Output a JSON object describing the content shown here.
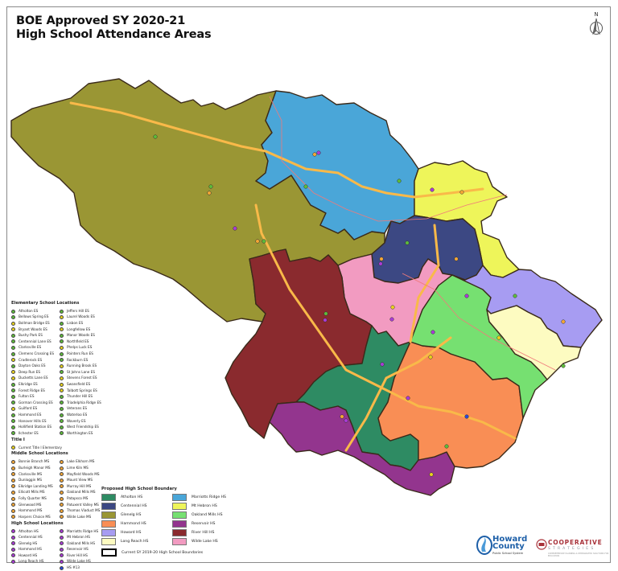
{
  "header": {
    "title_line1": "BOE Approved SY 2020-21",
    "title_line2": "High School Attendance Areas"
  },
  "compass": {
    "label": "N"
  },
  "colors": {
    "atholton": "#2e8b63",
    "centennial": "#3c4883",
    "glenelg": "#9a9634",
    "hammond": "#f98e55",
    "howard": "#a79cf2",
    "long_reach": "#fdfbc1",
    "marriotts_ridge": "#4aa6d8",
    "mt_hebron": "#eef55a",
    "oakland_mills": "#76e071",
    "reservoir": "#93358e",
    "river_hill": "#8a2a2e",
    "wilde_lake": "#f29bc1",
    "highway": "#f9b949",
    "es_marker": "#5dbb3a",
    "title1_marker": "#e8d21c",
    "ms_marker": "#f3a635",
    "hs_marker": "#a93ad6",
    "hs15_marker": "#2a49d8"
  },
  "elementary_legend": {
    "title": "Elementary School Locations",
    "col1": [
      "Atholton ES",
      "Bellows Spring ES",
      "Bollman Bridge ES",
      "Bryant Woods ES",
      "Bushy Park ES",
      "Centennial Lane ES",
      "Clarksville ES",
      "Clemens Crossing ES",
      "Cradlerock ES",
      "Dayton Oaks ES",
      "Deep Run ES",
      "Ducketts Lane ES",
      "Elkridge ES",
      "Forest Ridge ES",
      "Fulton ES",
      "Gorman Crossing ES",
      "Guilford ES",
      "Hammond ES",
      "Hanover Hills ES",
      "Hollifield Station ES",
      "Ilchester ES"
    ],
    "col1_title1": [
      false,
      false,
      true,
      true,
      false,
      false,
      false,
      false,
      true,
      false,
      true,
      true,
      false,
      false,
      false,
      false,
      true,
      false,
      false,
      false,
      false
    ],
    "col2": [
      "Jeffers Hill ES",
      "Laurel Woods ES",
      "Lisbon ES",
      "Longfellow ES",
      "Manor Woods ES",
      "Northfield ES",
      "Phelps Luck ES",
      "Pointers Run ES",
      "Rockburn ES",
      "Running Brook ES",
      "St Johns Lane ES",
      "Stevens Forest ES",
      "Swansfield ES",
      "Talbott Springs ES",
      "Thunder Hill ES",
      "Triadelphia Ridge ES",
      "Veterans ES",
      "Waterloo ES",
      "Waverly ES",
      "West Friendship ES",
      "Worthington ES"
    ],
    "col2_title1": [
      false,
      true,
      false,
      true,
      false,
      false,
      true,
      false,
      false,
      true,
      false,
      true,
      true,
      true,
      false,
      false,
      false,
      false,
      false,
      false,
      false
    ]
  },
  "title1_legend": {
    "title": "Title I",
    "item": "Current Title I Elementary"
  },
  "middle_legend": {
    "title": "Middle School Locations",
    "col1": [
      "Bonnie Branch MS",
      "Burleigh Manor MS",
      "Clarksville MS",
      "Dunloggin MS",
      "Elkridge Landing MS",
      "Ellicott Mills MS",
      "Folly Quarter MS",
      "Glenwood MS",
      "Hammond MS",
      "Harpers Choice MS"
    ],
    "col2": [
      "Lake Elkhorn MS",
      "Lime Kiln MS",
      "Mayfield Woods MS",
      "Mount View MS",
      "Murray Hill MS",
      "Oakland Mills MS",
      "Patapsco MS",
      "Patuxent Valley MS",
      "Thomas Viaduct MS",
      "Wilde Lake MS"
    ]
  },
  "high_legend": {
    "title": "High School Locations",
    "col1": [
      "Atholton HS",
      "Centennial HS",
      "Glenelg HS",
      "Hammond HS",
      "Howard HS",
      "Long Reach HS"
    ],
    "col2": [
      "Marriotts Ridge HS",
      "Mt Hebron HS",
      "Oakland Mills HS",
      "Reservoir HS",
      "River Hill HS",
      "Wilde Lake HS",
      "HS #13"
    ]
  },
  "boundary_legend": {
    "title": "Proposed High School Boundary",
    "items": [
      {
        "label": "Atholton HS",
        "color": "#2e8b63"
      },
      {
        "label": "Marriotts Ridge HS",
        "color": "#4aa6d8"
      },
      {
        "label": "Centennial HS",
        "color": "#3c4883"
      },
      {
        "label": "Mt Hebron HS",
        "color": "#eef55a"
      },
      {
        "label": "Glenelg HS",
        "color": "#9a9634"
      },
      {
        "label": "Oakland Mills HS",
        "color": "#76e071"
      },
      {
        "label": "Hammond HS",
        "color": "#f98e55"
      },
      {
        "label": "Reservoir HS",
        "color": "#93358e"
      },
      {
        "label": "Howard HS",
        "color": "#a79cf2"
      },
      {
        "label": "River Hill HS",
        "color": "#8a2a2e"
      },
      {
        "label": "Long Reach HS",
        "color": "#fdfbc1"
      },
      {
        "label": "Wilde Lake HS",
        "color": "#f29bc1"
      }
    ],
    "current_boundary_label": "Current SY 2019-20 High School Boundaries"
  },
  "logos": {
    "hcpss_line1": "Howard",
    "hcpss_line2": "County",
    "hcpss_sub": "Public School System",
    "coop_name": "COOPERATIVE",
    "coop_sub": "STRATEGIES",
    "coop_tag": "COMPREHENSIVE PLANNING & DEMOGRAPHIC SOLUTIONS FOR EDUCATION"
  }
}
